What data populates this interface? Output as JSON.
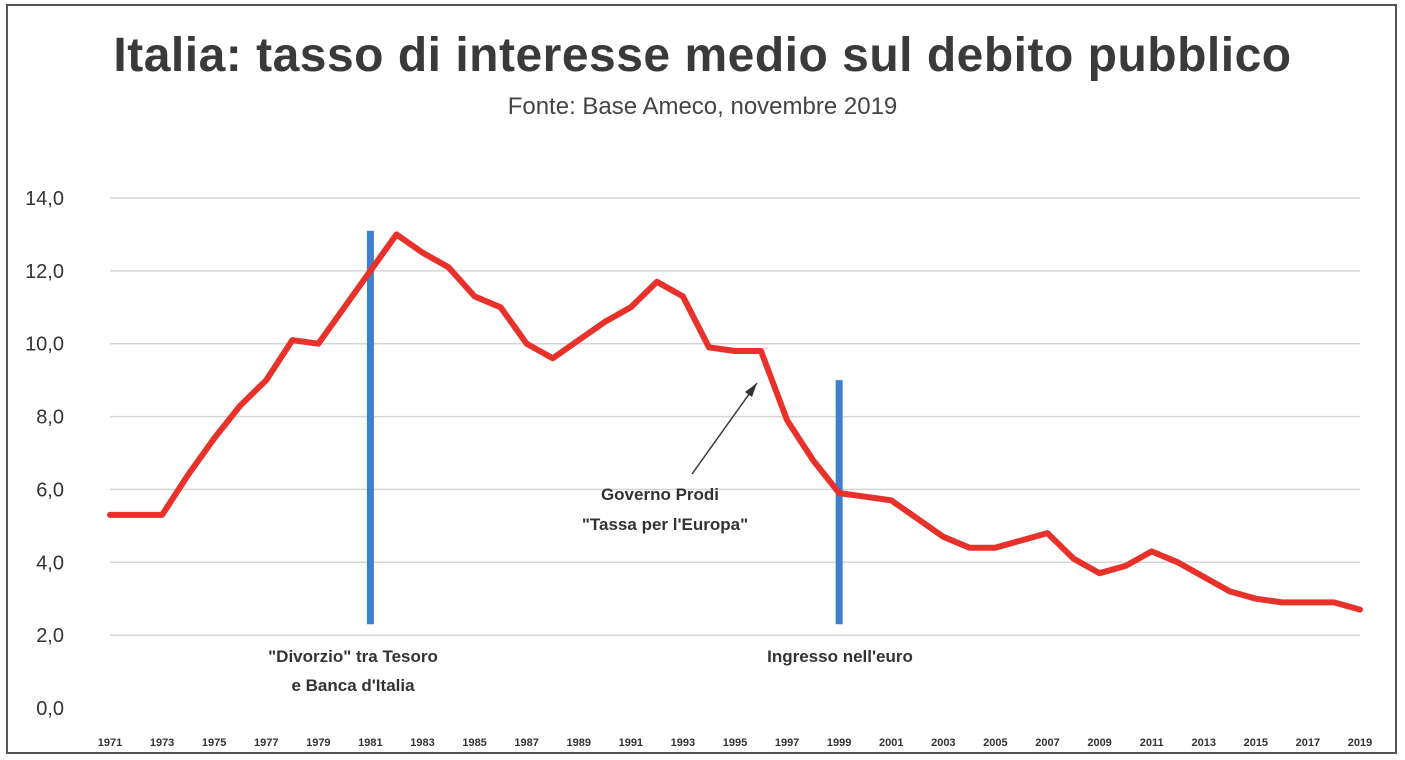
{
  "chart_data": {
    "type": "line",
    "title": "Italia: tasso di interesse medio sul debito pubblico",
    "subtitle": "Fonte: Base Ameco, novembre 2019",
    "xlabel": "",
    "ylabel": "",
    "ylim": [
      0,
      14
    ],
    "yticks": [
      "0,0",
      "2,0",
      "4,0",
      "6,0",
      "8,0",
      "10,0",
      "12,0",
      "14,0"
    ],
    "xticks": [
      "1971",
      "1973",
      "1975",
      "1977",
      "1979",
      "1981",
      "1983",
      "1985",
      "1987",
      "1989",
      "1991",
      "1993",
      "1995",
      "1997",
      "1999",
      "2001",
      "2003",
      "2005",
      "2007",
      "2009",
      "2011",
      "2013",
      "2015",
      "2017",
      "2019"
    ],
    "grid": true,
    "legend": "none",
    "series": [
      {
        "color": "#e8312a",
        "x": [
          1971,
          1972,
          1973,
          1974,
          1975,
          1976,
          1977,
          1978,
          1979,
          1980,
          1981,
          1982,
          1983,
          1984,
          1985,
          1986,
          1987,
          1988,
          1989,
          1990,
          1991,
          1992,
          1993,
          1994,
          1995,
          1996,
          1997,
          1998,
          1999,
          2000,
          2001,
          2002,
          2003,
          2004,
          2005,
          2006,
          2007,
          2008,
          2009,
          2010,
          2011,
          2012,
          2013,
          2014,
          2015,
          2016,
          2017,
          2018,
          2019
        ],
        "values": [
          5.3,
          5.3,
          5.3,
          6.4,
          7.4,
          8.3,
          9.0,
          10.1,
          10.0,
          11.0,
          12.0,
          13.0,
          12.5,
          12.1,
          11.3,
          11.0,
          10.0,
          9.6,
          10.1,
          10.6,
          11.0,
          11.7,
          11.3,
          9.9,
          9.8,
          9.8,
          7.9,
          6.8,
          5.9,
          5.8,
          5.7,
          5.2,
          4.7,
          4.4,
          4.4,
          4.6,
          4.8,
          4.1,
          3.7,
          3.9,
          4.3,
          4.0,
          3.6,
          3.2,
          3.0,
          2.9,
          2.9,
          2.9,
          2.7
        ]
      }
    ],
    "vlines": [
      {
        "x": 1981,
        "y_top": 13.1,
        "y_bottom": 2.3,
        "color": "#3f7fcf"
      },
      {
        "x": 1999,
        "y_top": 9.0,
        "y_bottom": 2.3,
        "color": "#3f7fcf"
      }
    ],
    "annotations": [
      {
        "lines": [
          "\"Divorzio\" tra Tesoro",
          "e Banca d'Italia"
        ]
      },
      {
        "lines": [
          "Ingresso nell'euro"
        ]
      },
      {
        "lines": [
          "Governo Prodi",
          "\"Tassa per l'Europa\""
        ]
      }
    ]
  }
}
